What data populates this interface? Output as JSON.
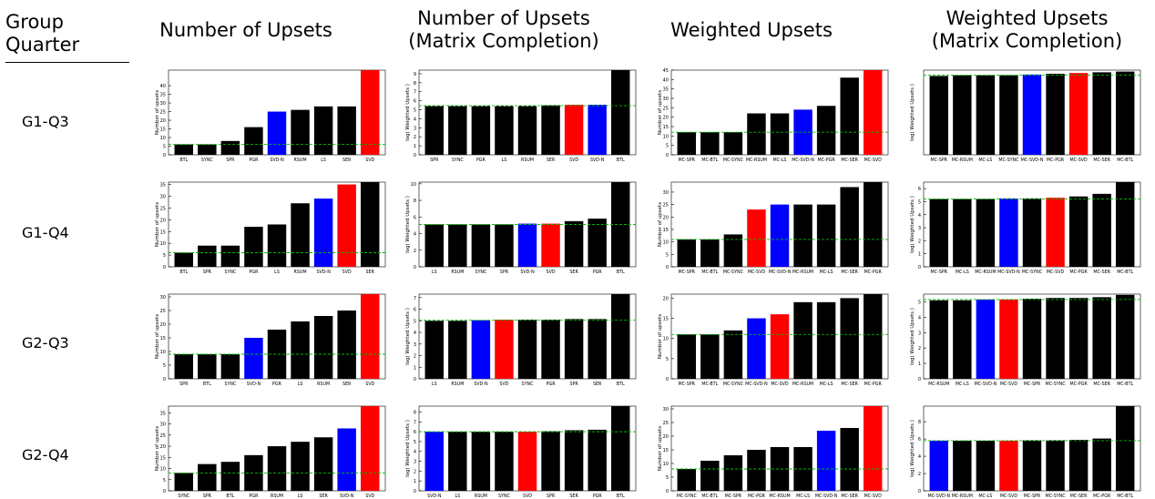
{
  "corner": {
    "line1": "Group",
    "line2": "Quarter"
  },
  "columns": [
    {
      "line1": "Number of Upsets",
      "line2": ""
    },
    {
      "line1": "Number of Upsets",
      "line2": "(Matrix Completion)"
    },
    {
      "line1": "Weighted Upsets",
      "line2": ""
    },
    {
      "line1": "Weighted Upsets",
      "line2": "(Matrix Completion)"
    }
  ],
  "rows": [
    "G1-Q3",
    "G1-Q4",
    "G2-Q3",
    "G2-Q4"
  ],
  "colors": {
    "black": "#000000",
    "red": "#ff0000",
    "blue": "#0000ff",
    "reference_line": "#00bb00"
  },
  "chart_data": [
    {
      "type": "bar",
      "row": "G1-Q3",
      "column": "Number of Upsets",
      "ylabel": "Number of upsets",
      "ylim": [
        0,
        49
      ],
      "yticks": [
        0,
        5,
        10,
        15,
        20,
        25,
        30,
        35,
        40
      ],
      "categories": [
        "BTL",
        "SYNC",
        "SPR",
        "PGR",
        "SVD-N",
        "RSUM",
        "LS",
        "SER",
        "SVD"
      ],
      "values": [
        6,
        6,
        8,
        16,
        25,
        26,
        28,
        28,
        49
      ],
      "colors": [
        "black",
        "black",
        "black",
        "black",
        "blue",
        "black",
        "black",
        "black",
        "red"
      ],
      "reference": 6
    },
    {
      "type": "bar",
      "row": "G1-Q3",
      "column": "Number of Upsets (Matrix Completion)",
      "ylabel": "log( Weighted Upsets )",
      "ylim": [
        0,
        9.4
      ],
      "yticks": [
        0,
        1,
        2,
        3,
        4,
        5,
        6,
        7,
        8,
        9
      ],
      "categories": [
        "SPR",
        "SYNC",
        "PGR",
        "LS",
        "RSUM",
        "SER",
        "SVD",
        "SVD-N",
        "BTL"
      ],
      "values": [
        5.4,
        5.4,
        5.4,
        5.4,
        5.4,
        5.5,
        5.55,
        5.55,
        9.4
      ],
      "colors": [
        "black",
        "black",
        "black",
        "black",
        "black",
        "black",
        "red",
        "blue",
        "black"
      ],
      "reference": 5.45
    },
    {
      "type": "bar",
      "row": "G1-Q3",
      "column": "Weighted Upsets",
      "ylabel": "Number of upsets",
      "ylim": [
        0,
        45
      ],
      "yticks": [
        0,
        5,
        10,
        15,
        20,
        25,
        30,
        35,
        40,
        45
      ],
      "categories": [
        "MC-SPR",
        "MC-BTL",
        "MC-SYNC",
        "MC-RSUM",
        "MC-LS",
        "MC-SVD-N",
        "MC-PGR",
        "MC-SER",
        "MC-SVD"
      ],
      "values": [
        12,
        12,
        12,
        22,
        22,
        24,
        26,
        41,
        45
      ],
      "colors": [
        "black",
        "black",
        "black",
        "black",
        "black",
        "blue",
        "black",
        "black",
        "red"
      ],
      "reference": 12
    },
    {
      "type": "bar",
      "row": "G1-Q3",
      "column": "Weighted Upsets (Matrix Completion)",
      "ylabel": "log( Weighted Upsets )",
      "ylim": [
        0,
        5.8
      ],
      "yticks": [],
      "categories": [
        "MC-SPR",
        "MC-RSUM",
        "MC-LS",
        "MC-SYNC",
        "MC-SVD-N",
        "MC-PGR",
        "MC-SVD",
        "MC-SER",
        "MC-BTL"
      ],
      "values": [
        5.4,
        5.45,
        5.45,
        5.45,
        5.5,
        5.55,
        5.6,
        5.65,
        5.7
      ],
      "colors": [
        "black",
        "black",
        "black",
        "black",
        "blue",
        "black",
        "red",
        "black",
        "black"
      ],
      "reference": 5.45
    },
    {
      "type": "bar",
      "row": "G1-Q4",
      "column": "Number of Upsets",
      "ylabel": "Number of upsets",
      "ylim": [
        0,
        36
      ],
      "yticks": [
        0,
        5,
        10,
        15,
        20,
        25,
        30,
        35
      ],
      "categories": [
        "BTL",
        "SPR",
        "SYNC",
        "PGR",
        "LS",
        "RSUM",
        "SVD-N",
        "SVD",
        "SER"
      ],
      "values": [
        6,
        9,
        9,
        17,
        18,
        27,
        29,
        35,
        36
      ],
      "colors": [
        "black",
        "black",
        "black",
        "black",
        "black",
        "black",
        "blue",
        "red",
        "black"
      ],
      "reference": 6
    },
    {
      "type": "bar",
      "row": "G1-Q4",
      "column": "Number of Upsets (Matrix Completion)",
      "ylabel": "log( Weighted Upsets )",
      "ylim": [
        0,
        10.2
      ],
      "yticks": [
        0,
        2,
        4,
        6,
        8,
        10
      ],
      "categories": [
        "LS",
        "RSUM",
        "SYNC",
        "SPR",
        "SVD-N",
        "SVD",
        "SER",
        "PGR",
        "BTL"
      ],
      "values": [
        5.1,
        5.1,
        5.1,
        5.1,
        5.2,
        5.2,
        5.5,
        5.8,
        10.2
      ],
      "colors": [
        "black",
        "black",
        "black",
        "black",
        "blue",
        "red",
        "black",
        "black",
        "black"
      ],
      "reference": 5.1
    },
    {
      "type": "bar",
      "row": "G1-Q4",
      "column": "Weighted Upsets",
      "ylabel": "Number of upsets",
      "ylim": [
        0,
        34
      ],
      "yticks": [
        0,
        5,
        10,
        15,
        20,
        25,
        30
      ],
      "categories": [
        "MC-SPR",
        "MC-BTL",
        "MC-SYNC",
        "MC-SVD",
        "MC-SVD-N",
        "MC-RSUM",
        "MC-LS",
        "MC-SER",
        "MC-PGR"
      ],
      "values": [
        11,
        11,
        13,
        23,
        25,
        25,
        25,
        32,
        34
      ],
      "colors": [
        "black",
        "black",
        "black",
        "red",
        "blue",
        "black",
        "black",
        "black",
        "black"
      ],
      "reference": 11
    },
    {
      "type": "bar",
      "row": "G1-Q4",
      "column": "Weighted Upsets (Matrix Completion)",
      "ylabel": "log( Weighted Upsets )",
      "ylim": [
        0,
        6.5
      ],
      "yticks": [
        0,
        1,
        2,
        3,
        4,
        5,
        6
      ],
      "categories": [
        "MC-SPR",
        "MC-LS",
        "MC-RSUM",
        "MC-SVD-N",
        "MC-SYNC",
        "MC-SVD",
        "MC-PGR",
        "MC-SER",
        "MC-BTL"
      ],
      "values": [
        5.2,
        5.2,
        5.2,
        5.25,
        5.25,
        5.3,
        5.4,
        5.6,
        6.5
      ],
      "colors": [
        "black",
        "black",
        "black",
        "blue",
        "black",
        "red",
        "black",
        "black",
        "black"
      ],
      "reference": 5.2
    },
    {
      "type": "bar",
      "row": "G2-Q3",
      "column": "Number of Upsets",
      "ylabel": "Number of upsets",
      "ylim": [
        0,
        31
      ],
      "yticks": [
        0,
        5,
        10,
        15,
        20,
        25,
        30
      ],
      "categories": [
        "SPR",
        "BTL",
        "SYNC",
        "SVD-N",
        "PGR",
        "LS",
        "RSUM",
        "SER",
        "SVD"
      ],
      "values": [
        9,
        9,
        9,
        15,
        18,
        21,
        23,
        25,
        31
      ],
      "colors": [
        "black",
        "black",
        "black",
        "blue",
        "black",
        "black",
        "black",
        "black",
        "red"
      ],
      "reference": 9
    },
    {
      "type": "bar",
      "row": "G2-Q3",
      "column": "Number of Upsets (Matrix Completion)",
      "ylabel": "log( Weighted Upsets )",
      "ylim": [
        0,
        7.3
      ],
      "yticks": [
        0,
        1,
        2,
        3,
        4,
        5,
        6,
        7
      ],
      "categories": [
        "LS",
        "RSUM",
        "SVD-N",
        "SVD",
        "SYNC",
        "PGR",
        "SPR",
        "SER",
        "BTL"
      ],
      "values": [
        5,
        5,
        5.05,
        5.1,
        5.1,
        5.1,
        5.15,
        5.15,
        7.3
      ],
      "colors": [
        "black",
        "black",
        "blue",
        "red",
        "black",
        "black",
        "black",
        "black",
        "black"
      ],
      "reference": 5.05
    },
    {
      "type": "bar",
      "row": "G2-Q3",
      "column": "Weighted Upsets",
      "ylabel": "Number of upsets",
      "ylim": [
        0,
        21
      ],
      "yticks": [
        0,
        5,
        10,
        15,
        20
      ],
      "categories": [
        "MC-SPR",
        "MC-BTL",
        "MC-SYNC",
        "MC-SVD-N",
        "MC-SVD",
        "MC-RSUM",
        "MC-LS",
        "MC-SER",
        "MC-PGR"
      ],
      "values": [
        11,
        11,
        12,
        15,
        16,
        19,
        19,
        20,
        21
      ],
      "colors": [
        "black",
        "black",
        "black",
        "blue",
        "red",
        "black",
        "black",
        "black",
        "black"
      ],
      "reference": 11
    },
    {
      "type": "bar",
      "row": "G2-Q3",
      "column": "Weighted Upsets (Matrix Completion)",
      "ylabel": "log( Weighted Upsets )",
      "ylim": [
        0,
        5.5
      ],
      "yticks": [
        0,
        1,
        2,
        3,
        4,
        5
      ],
      "categories": [
        "MC-RSUM",
        "MC-LS",
        "MC-SVD-N",
        "MC-SVD",
        "MC-SPR",
        "MC-SYNC",
        "MC-PGR",
        "MC-SER",
        "MC-BTL"
      ],
      "values": [
        5.1,
        5.1,
        5.15,
        5.15,
        5.2,
        5.25,
        5.25,
        5.3,
        5.45
      ],
      "colors": [
        "black",
        "black",
        "blue",
        "red",
        "black",
        "black",
        "black",
        "black",
        "black"
      ],
      "reference": 5.15
    },
    {
      "type": "bar",
      "row": "G2-Q4",
      "column": "Number of Upsets",
      "ylabel": "Number of upsets",
      "ylim": [
        0,
        38
      ],
      "yticks": [
        0,
        5,
        10,
        15,
        20,
        25,
        30,
        35
      ],
      "categories": [
        "SYNC",
        "SPR",
        "BTL",
        "PGR",
        "RSUM",
        "LS",
        "SER",
        "SVD-N",
        "SVD"
      ],
      "values": [
        8,
        12,
        13,
        16,
        20,
        22,
        24,
        28,
        38
      ],
      "colors": [
        "black",
        "black",
        "black",
        "black",
        "black",
        "black",
        "black",
        "blue",
        "red"
      ],
      "reference": 8
    },
    {
      "type": "bar",
      "row": "G2-Q4",
      "column": "Number of Upsets (Matrix Completion)",
      "ylabel": "log( Weighted Upsets )",
      "ylim": [
        0,
        8.6
      ],
      "yticks": [
        0,
        1,
        2,
        3,
        4,
        5,
        6,
        7,
        8
      ],
      "categories": [
        "SVD-N",
        "LS",
        "RSUM",
        "SYNC",
        "SVD",
        "SPR",
        "SER",
        "PGR",
        "BTL"
      ],
      "values": [
        6,
        6,
        6,
        6,
        6,
        6.05,
        6.15,
        6.2,
        8.6
      ],
      "colors": [
        "blue",
        "black",
        "black",
        "black",
        "red",
        "black",
        "black",
        "black",
        "black"
      ],
      "reference": 6
    },
    {
      "type": "bar",
      "row": "G2-Q4",
      "column": "Weighted Upsets",
      "ylabel": "Number of upsets",
      "ylim": [
        0,
        31
      ],
      "yticks": [
        0,
        5,
        10,
        15,
        20,
        25,
        30
      ],
      "categories": [
        "MC-SYNC",
        "MC-BTL",
        "MC-SPR",
        "MC-PGR",
        "MC-RSUM",
        "MC-LS",
        "MC-SVD-N",
        "MC-SER",
        "MC-SVD"
      ],
      "values": [
        8,
        11,
        13,
        15,
        16,
        16,
        22,
        23,
        31
      ],
      "colors": [
        "black",
        "black",
        "black",
        "black",
        "black",
        "black",
        "blue",
        "black",
        "red"
      ],
      "reference": 8
    },
    {
      "type": "bar",
      "row": "G2-Q4",
      "column": "Weighted Upsets (Matrix Completion)",
      "ylabel": "log( Weighted Upsets )",
      "ylim": [
        0,
        9.8
      ],
      "yticks": [
        0,
        2,
        4,
        6,
        8
      ],
      "categories": [
        "MC-SVD-N",
        "MC-RSUM",
        "MC-LS",
        "MC-SVD",
        "MC-SPR",
        "MC-SYNC",
        "MC-SER",
        "MC-PGR",
        "MC-BTL"
      ],
      "values": [
        5.8,
        5.8,
        5.8,
        5.8,
        5.85,
        5.85,
        5.9,
        6.05,
        9.8
      ],
      "colors": [
        "blue",
        "black",
        "black",
        "red",
        "black",
        "black",
        "black",
        "black",
        "black"
      ],
      "reference": 5.8
    }
  ]
}
